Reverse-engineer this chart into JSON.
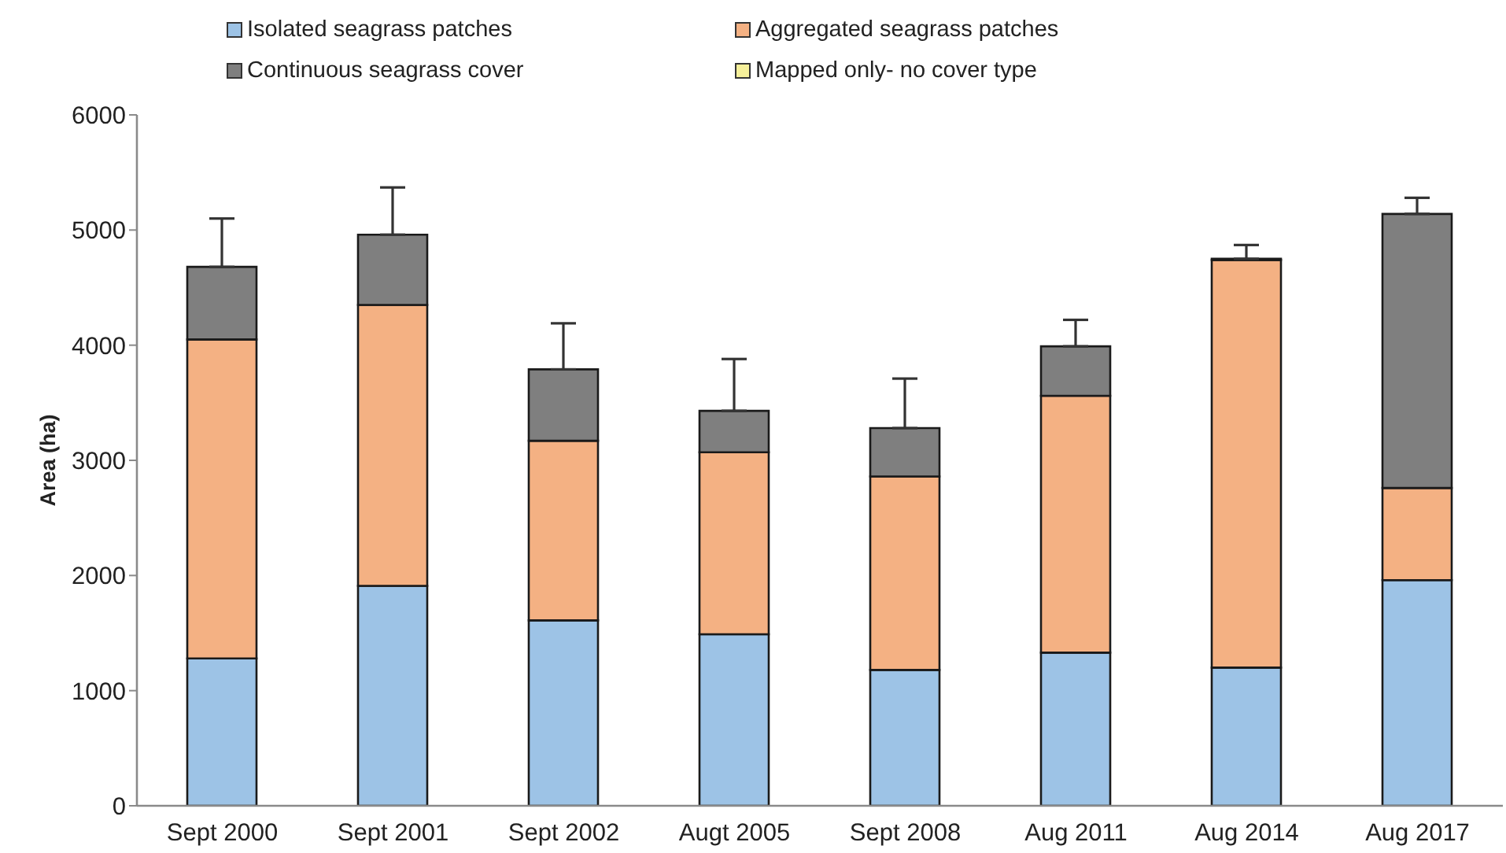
{
  "chart_data": {
    "type": "bar",
    "stacked": true,
    "ylabel": "Area (ha)",
    "categories": [
      "Sept 2000",
      "Sept 2001",
      "Sept 2002",
      "Augt 2005",
      "Sept 2008",
      "Aug 2011",
      "Aug 2014",
      "Aug 2017"
    ],
    "series": [
      {
        "name": "Isolated seagrass patches",
        "color": "#9dc3e6",
        "values": [
          1280,
          1910,
          1610,
          1490,
          1180,
          1330,
          1200,
          1960
        ]
      },
      {
        "name": "Aggregated seagrass patches",
        "color": "#f4b183",
        "values": [
          2770,
          2440,
          1560,
          1580,
          1680,
          2230,
          3540,
          800
        ]
      },
      {
        "name": "Continuous seagrass cover",
        "color": "#7f7f7f",
        "values": [
          630,
          610,
          620,
          360,
          420,
          430,
          10,
          2380
        ],
        "errors": [
          [
            4680,
            5100
          ],
          [
            4960,
            5370
          ],
          [
            3790,
            4190
          ],
          [
            3430,
            3880
          ],
          [
            3280,
            3710
          ],
          [
            3990,
            4220
          ],
          [
            4750,
            4870
          ],
          [
            5140,
            5280
          ]
        ]
      },
      {
        "name": "Mapped only- no cover type",
        "color": "#f6f09a",
        "values": [
          null,
          null,
          null,
          null,
          null,
          null,
          null,
          null
        ]
      }
    ],
    "ylim": [
      0,
      6000
    ],
    "yticks": [
      0,
      1000,
      2000,
      3000,
      4000,
      5000,
      6000
    ],
    "legend": "top"
  }
}
